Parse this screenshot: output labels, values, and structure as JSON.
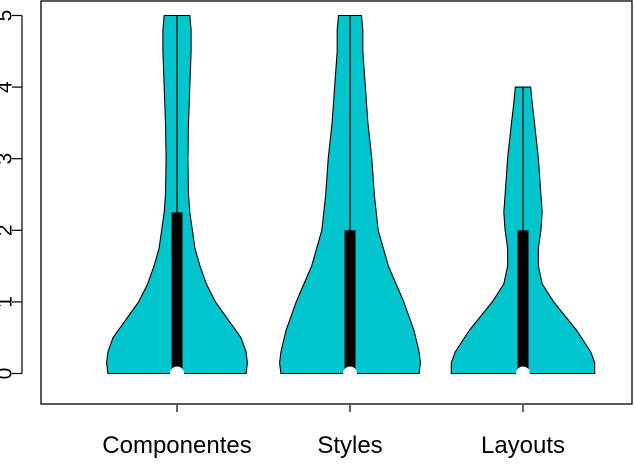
{
  "chart_data": {
    "type": "violin",
    "title": "",
    "xlabel": "",
    "ylabel": "",
    "ylim": [
      0,
      5
    ],
    "yticks": [
      "0",
      "1",
      "2",
      "3",
      "4",
      "5"
    ],
    "categories": [
      "Componentes",
      "Styles",
      "Layouts"
    ],
    "fill_color": "#00C5CD",
    "box_color": "#000000",
    "median_color": "#ffffff",
    "series": [
      {
        "category": "Componentes",
        "min": 0,
        "q1": 0,
        "median": 0,
        "q3": 2.25,
        "max": 5,
        "density": [
          [
            0,
            0.54
          ],
          [
            0.15,
            0.55
          ],
          [
            0.3,
            0.54
          ],
          [
            0.5,
            0.5
          ],
          [
            0.75,
            0.4
          ],
          [
            1,
            0.3
          ],
          [
            1.25,
            0.23
          ],
          [
            1.5,
            0.18
          ],
          [
            1.75,
            0.14
          ],
          [
            2,
            0.12
          ],
          [
            2.25,
            0.1
          ],
          [
            2.5,
            0.09
          ],
          [
            3,
            0.085
          ],
          [
            3.5,
            0.09
          ],
          [
            4,
            0.1
          ],
          [
            4.5,
            0.11
          ],
          [
            4.8,
            0.11
          ],
          [
            5,
            0.1
          ]
        ]
      },
      {
        "category": "Styles",
        "min": 0,
        "q1": 0,
        "median": 0,
        "q3": 2,
        "max": 5,
        "density": [
          [
            0,
            0.54
          ],
          [
            0.15,
            0.55
          ],
          [
            0.3,
            0.54
          ],
          [
            0.6,
            0.5
          ],
          [
            1,
            0.42
          ],
          [
            1.5,
            0.3
          ],
          [
            2,
            0.22
          ],
          [
            2.5,
            0.19
          ],
          [
            3,
            0.17
          ],
          [
            3.5,
            0.14
          ],
          [
            4,
            0.12
          ],
          [
            4.5,
            0.1
          ],
          [
            4.8,
            0.1
          ],
          [
            5,
            0.09
          ]
        ]
      },
      {
        "category": "Layouts",
        "min": 0,
        "q1": 0,
        "median": 0,
        "q3": 2,
        "max": 4,
        "density": [
          [
            0,
            0.56
          ],
          [
            0.15,
            0.56
          ],
          [
            0.3,
            0.53
          ],
          [
            0.6,
            0.42
          ],
          [
            1,
            0.24
          ],
          [
            1.25,
            0.15
          ],
          [
            1.5,
            0.12
          ],
          [
            1.75,
            0.12
          ],
          [
            2,
            0.14
          ],
          [
            2.25,
            0.15
          ],
          [
            2.5,
            0.14
          ],
          [
            3,
            0.12
          ],
          [
            3.5,
            0.09
          ],
          [
            3.8,
            0.07
          ],
          [
            4,
            0.06
          ]
        ]
      }
    ]
  }
}
